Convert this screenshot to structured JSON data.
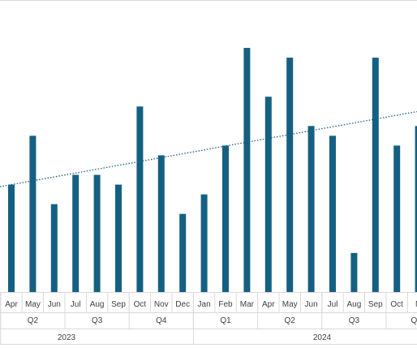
{
  "chart_data": {
    "type": "bar",
    "title": "",
    "xlabel": "",
    "ylabel": "",
    "categories": [
      "Apr",
      "May",
      "Jun",
      "Jul",
      "Aug",
      "Sep",
      "Oct",
      "Nov",
      "Dec",
      "Jan",
      "Feb",
      "Mar",
      "Apr",
      "May",
      "Jun",
      "Jul",
      "Aug",
      "Sep",
      "Oct",
      "N"
    ],
    "quarters": [
      {
        "label": "Q2",
        "year_index": 0,
        "from": 0,
        "to": 2
      },
      {
        "label": "Q3",
        "year_index": 0,
        "from": 3,
        "to": 5
      },
      {
        "label": "Q4",
        "year_index": 0,
        "from": 6,
        "to": 8
      },
      {
        "label": "Q1",
        "year_index": 1,
        "from": 9,
        "to": 11
      },
      {
        "label": "Q2",
        "year_index": 1,
        "from": 12,
        "to": 14
      },
      {
        "label": "Q3",
        "year_index": 1,
        "from": 15,
        "to": 17
      },
      {
        "label": "Q",
        "year_index": 1,
        "from": 18,
        "to": 19
      }
    ],
    "years": [
      {
        "label": "2023",
        "from": 0,
        "to": 8
      },
      {
        "label": "2024",
        "from": 9,
        "to": 19
      }
    ],
    "series": [
      {
        "values": [
          11,
          16,
          9,
          12,
          12,
          11,
          19,
          14,
          8,
          10,
          15,
          25,
          20,
          24,
          17,
          16,
          4,
          24,
          15,
          17
        ]
      }
    ],
    "trendline": {
      "type": "linear",
      "style": "dotted",
      "start": 11,
      "end": 18.5
    },
    "ylim": [
      0,
      26
    ],
    "grid": false,
    "legend": "none",
    "colors": {
      "bar": "#156082",
      "trendline": "#156082",
      "axis": "#d9d9d9",
      "text": "#404040"
    }
  }
}
